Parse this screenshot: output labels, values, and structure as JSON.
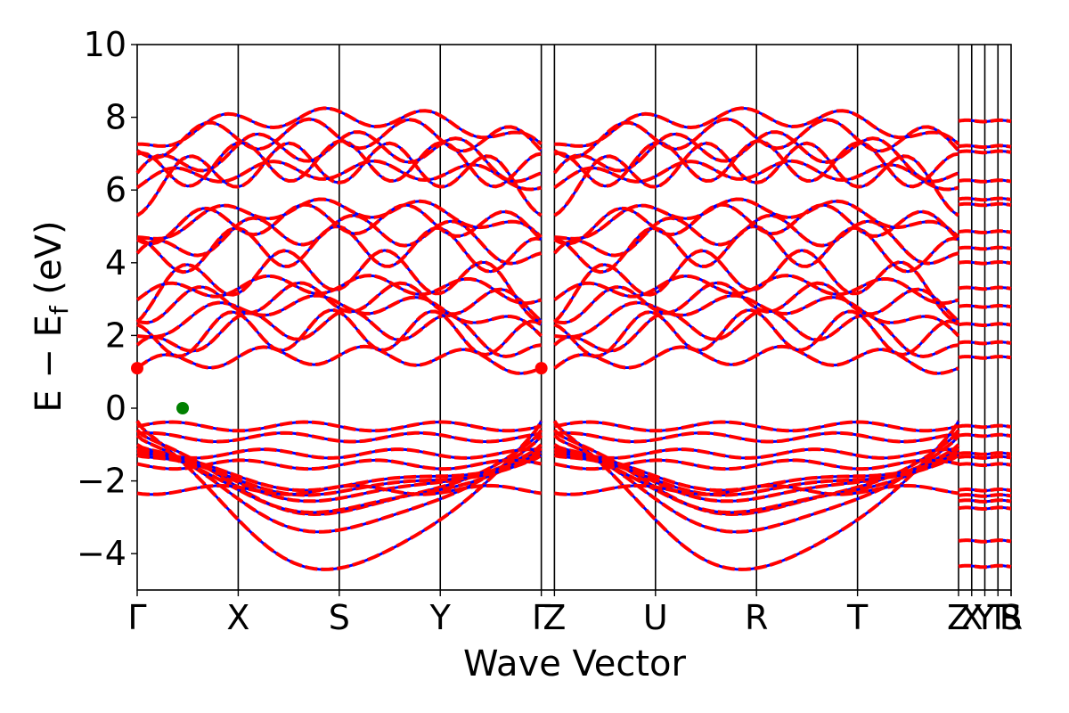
{
  "chart_data": {
    "type": "line",
    "xlabel": "Wave Vector",
    "ylabel": "E − E",
    "ylabel_sub": "f",
    "ylabel_unit": " (eV)",
    "ylim": [
      -5,
      10
    ],
    "yticks": [
      -4,
      -2,
      0,
      2,
      4,
      6,
      8,
      10
    ],
    "ytick_labels": [
      "−4",
      "−2",
      "0",
      "2",
      "4",
      "6",
      "8",
      "10"
    ],
    "xlim": [
      0,
      8.65
    ],
    "kpath": [
      {
        "label": "Γ",
        "x": 0
      },
      {
        "label": "X",
        "x": 1.0
      },
      {
        "label": "S",
        "x": 2.0
      },
      {
        "label": "Y",
        "x": 3.0
      },
      {
        "label": "Γ",
        "x": 4.0
      },
      {
        "label": "Z",
        "x": 4.13
      },
      {
        "label": "U",
        "x": 5.13
      },
      {
        "label": "R",
        "x": 6.13
      },
      {
        "label": "T",
        "x": 7.13
      },
      {
        "label": "Z",
        "x": 8.13
      },
      {
        "label": "X",
        "x": 8.26
      },
      {
        "label": "Y",
        "x": 8.39
      },
      {
        "label": "T",
        "x": 8.52
      },
      {
        "label": "S",
        "x": 8.65
      },
      {
        "label": "R",
        "x": 8.65
      }
    ],
    "series": [
      {
        "color": "#0000ff",
        "style": "solid"
      },
      {
        "color": "#ff0000",
        "style": "dashed"
      }
    ],
    "valence_bands_at_gamma": [
      -0.35,
      -0.6,
      -0.75,
      -1.0,
      -1.1,
      -1.2,
      -1.3
    ],
    "valence_bands_bottom": [
      -4.4,
      -3.65,
      -3.35,
      -3.0,
      -2.8,
      -2.5,
      -2.3
    ],
    "conduction_bands_at_gamma": [
      1.1,
      1.4,
      1.8,
      1.95,
      2.7,
      2.9,
      3.05,
      4.0,
      4.1,
      4.6,
      4.85,
      5.85,
      6.2,
      6.3,
      6.45,
      7.1,
      7.2
    ],
    "markers": [
      {
        "name": "cbm",
        "x": 0.0,
        "y": 1.1,
        "color": "#ff0000"
      },
      {
        "name": "cbm",
        "x": 4.0,
        "y": 1.1,
        "color": "#ff0000"
      },
      {
        "name": "vbm",
        "x": 0.45,
        "y": 0.0,
        "color": "#008000"
      }
    ],
    "flat_bands_last_segment": [
      -4.35,
      -3.65,
      -2.75,
      -2.55,
      -2.4,
      -2.25,
      -1.55,
      -1.35,
      -1.25,
      -0.75,
      -0.5,
      1.4,
      1.8,
      2.3,
      2.8,
      3.3,
      4.0,
      4.4,
      4.85,
      5.6,
      5.75,
      6.25,
      7.05,
      7.2,
      7.9
    ]
  }
}
